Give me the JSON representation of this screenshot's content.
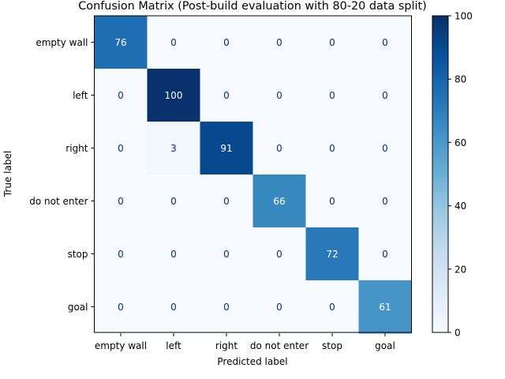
{
  "chart_data": {
    "type": "heatmap",
    "title": "Confusion Matrix (Post-build evaluation with 80-20 data split)",
    "xlabel": "Predicted label",
    "ylabel": "True label",
    "x_categories": [
      "empty wall",
      "left",
      "right",
      "do not enter",
      "stop",
      "goal"
    ],
    "y_categories": [
      "empty wall",
      "left",
      "right",
      "do not enter",
      "stop",
      "goal"
    ],
    "values": [
      [
        76,
        0,
        0,
        0,
        0,
        0
      ],
      [
        0,
        100,
        0,
        0,
        0,
        0
      ],
      [
        0,
        3,
        91,
        0,
        0,
        0
      ],
      [
        0,
        0,
        0,
        66,
        0,
        0
      ],
      [
        0,
        0,
        0,
        0,
        72,
        0
      ],
      [
        0,
        0,
        0,
        0,
        0,
        61
      ]
    ],
    "colormap": "Blues",
    "colorbar": {
      "range": [
        0,
        100
      ],
      "ticks": [
        0,
        20,
        40,
        60,
        80,
        100
      ]
    },
    "grid": false
  }
}
